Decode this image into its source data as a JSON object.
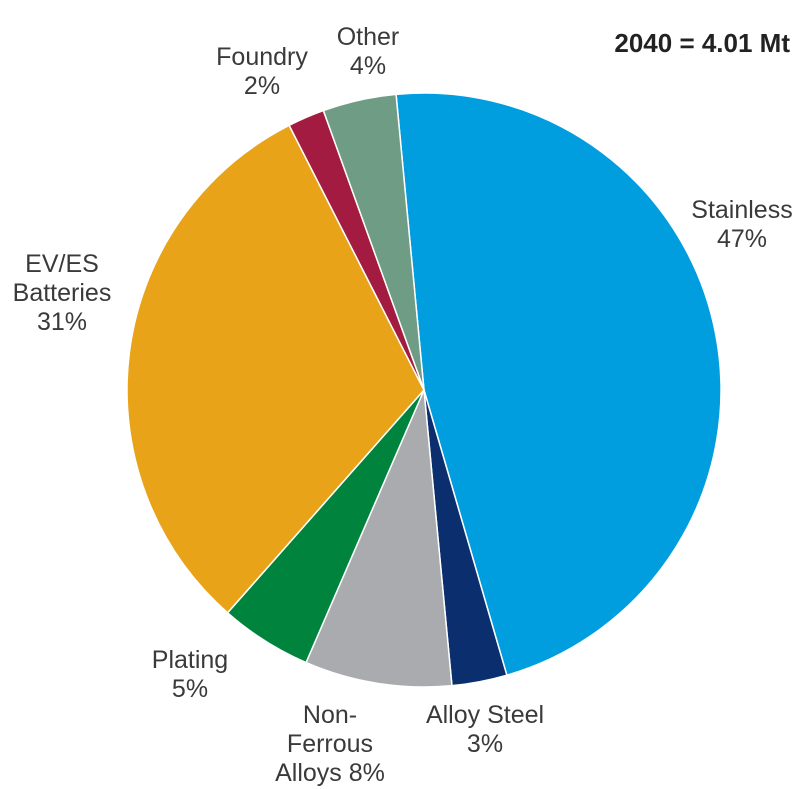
{
  "chart_data": {
    "type": "pie",
    "annotation": "2040 = 4.01 Mt",
    "slices": [
      {
        "label_lines": [
          "Stainless",
          "47%"
        ],
        "value": 47,
        "color": "#009ddf"
      },
      {
        "label_lines": [
          "Alloy Steel",
          "3%"
        ],
        "value": 3,
        "color": "#0b2f6e"
      },
      {
        "label_lines": [
          "Non-",
          "Ferrous",
          "Alloys 8%"
        ],
        "value": 8,
        "color": "#a9abae"
      },
      {
        "label_lines": [
          "Plating",
          "5%"
        ],
        "value": 5,
        "color": "#00843d"
      },
      {
        "label_lines": [
          "EV/ES",
          "Batteries",
          "31%"
        ],
        "value": 31,
        "color": "#e8a318"
      },
      {
        "label_lines": [
          "Foundry",
          "2%"
        ],
        "value": 2,
        "color": "#a31b40"
      },
      {
        "label_lines": [
          "Other",
          "4%"
        ],
        "value": 4,
        "color": "#6f9c84"
      }
    ]
  }
}
